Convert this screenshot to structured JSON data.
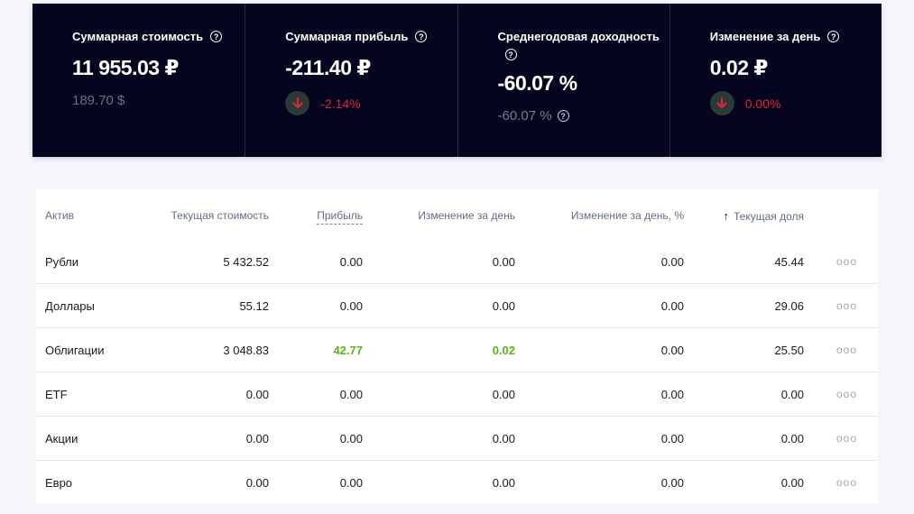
{
  "summary": {
    "cards": [
      {
        "title": "Суммарная стоимость",
        "value": "11 955.03 ₽",
        "sub": "189.70 $"
      },
      {
        "title": "Суммарная прибыль",
        "value": "-211.40 ₽",
        "delta": "-2.14%"
      },
      {
        "title": "Среднегодовая доходность",
        "value": "-60.07 %",
        "sub": "-60.07 %"
      },
      {
        "title": "Изменение за день",
        "value": "0.02 ₽",
        "delta": "0.00%"
      }
    ],
    "help_glyph": "?",
    "down_color": "#e0253a"
  },
  "table": {
    "headers": {
      "asset": "Актив",
      "current_value": "Текущая стоимость",
      "profit": "Прибыль",
      "day_change": "Изменение за день",
      "day_change_pct": "Изменение за день, %",
      "current_share": "Текущая доля",
      "sort_arrow": "↑"
    },
    "rows": [
      {
        "asset": "Рубли",
        "current_value": "5 432.52",
        "profit": "0.00",
        "day_change": "0.00",
        "day_change_pct": "0.00",
        "share": "45.44",
        "menu": "ooo"
      },
      {
        "asset": "Доллары",
        "current_value": "55.12",
        "profit": "0.00",
        "day_change": "0.00",
        "day_change_pct": "0.00",
        "share": "29.06",
        "menu": "ooo"
      },
      {
        "asset": "Облигации",
        "current_value": "3 048.83",
        "profit": "42.77",
        "day_change": "0.02",
        "day_change_pct": "0.00",
        "share": "25.50",
        "menu": "ooo"
      },
      {
        "asset": "ETF",
        "current_value": "0.00",
        "profit": "0.00",
        "day_change": "0.00",
        "day_change_pct": "0.00",
        "share": "0.00",
        "menu": "ooo"
      },
      {
        "asset": "Акции",
        "current_value": "0.00",
        "profit": "0.00",
        "day_change": "0.00",
        "day_change_pct": "0.00",
        "share": "0.00",
        "menu": "ooo"
      },
      {
        "asset": "Евро",
        "current_value": "0.00",
        "profit": "0.00",
        "day_change": "0.00",
        "day_change_pct": "0.00",
        "share": "0.00",
        "menu": "ooo"
      }
    ],
    "positive_color": "#5ab31a"
  }
}
